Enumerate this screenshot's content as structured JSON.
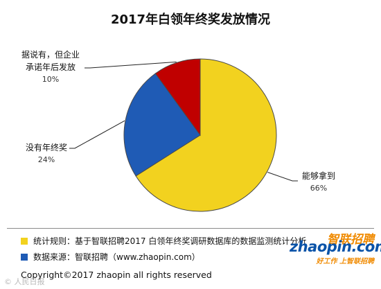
{
  "chart_data": {
    "type": "pie",
    "title": "2017年白领年终奖发放情况",
    "slices": [
      {
        "label": "能够拿到",
        "value": 66,
        "pct_label": "66%",
        "color": "#f2d21f"
      },
      {
        "label": "没有年终奖",
        "value": 24,
        "pct_label": "24%",
        "color": "#1f5bb5"
      },
      {
        "label_lines": [
          "据说有，但企业",
          "承诺年后发放"
        ],
        "value": 10,
        "pct_label": "10%",
        "color": "#c00000"
      }
    ]
  },
  "footer": {
    "notes": [
      {
        "text": "统计规则：基于智联招聘2017 白领年终奖调研数据库的数据监测统计分析",
        "color": "#f2d21f"
      },
      {
        "text": "数据来源：智联招聘（www.zhaopin.com）",
        "color": "#1f5bb5"
      }
    ],
    "copyright": "Copyright©2017 zhaopin all rights reserved"
  },
  "logo": {
    "cn": "智联招聘",
    "en": "zhaopin.com",
    "slogan": "好工作 上智联招聘"
  },
  "watermark": "© 人民日报"
}
